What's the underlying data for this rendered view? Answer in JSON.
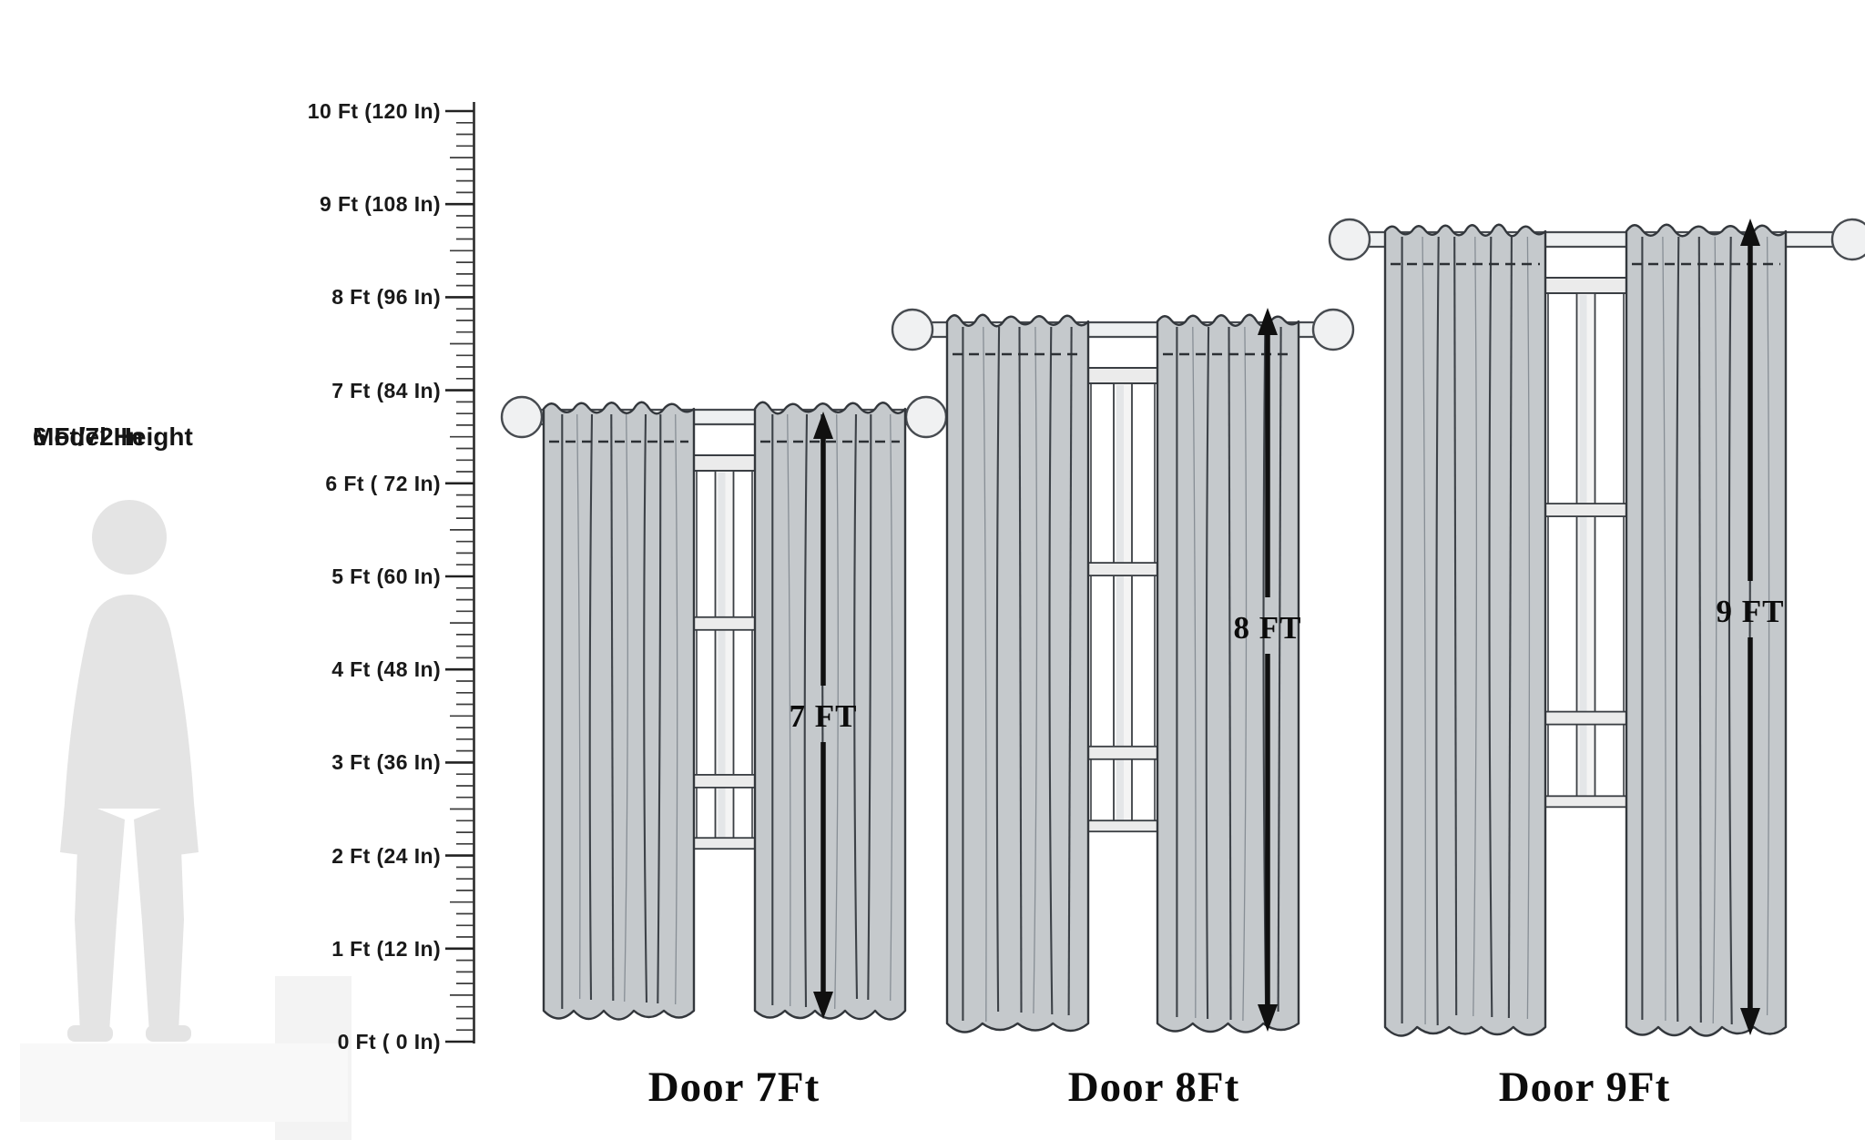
{
  "diagram": {
    "model": {
      "line1": "Model Height",
      "line2": "6 Ft/72 In",
      "height_ft": 6
    },
    "ruler": {
      "labels": [
        "10 Ft (120 In)",
        "9 Ft (108 In)",
        "8 Ft (96 In)",
        "7 Ft (84 In)",
        "6 Ft ( 72 In)",
        "5 Ft (60 In)",
        "4 Ft (48 In)",
        "3 Ft (36 In)",
        "2 Ft (24 In)",
        "1 Ft (12 In)",
        "0 Ft ( 0 In)"
      ],
      "max_ft": 10,
      "min_ft": 0
    },
    "sets": [
      {
        "door_label": "Door 7Ft",
        "arrow_label": "7 FT",
        "door_height_ft": 7
      },
      {
        "door_label": "Door 8Ft",
        "arrow_label": "8 FT",
        "door_height_ft": 8
      },
      {
        "door_label": "Door 9Ft",
        "arrow_label": "9 FT",
        "door_height_ft": 9
      }
    ],
    "colors": {
      "curtain": "#c5c9cc",
      "curtain_outline": "#33373c",
      "fold_dark": "#3d4248",
      "fold_light": "#878e95",
      "window_frame": "#ebebeb",
      "frame_outline": "#3a3e43",
      "arrow": "#101010",
      "silhouette": "#e4e4e4",
      "text": "#141414"
    }
  }
}
